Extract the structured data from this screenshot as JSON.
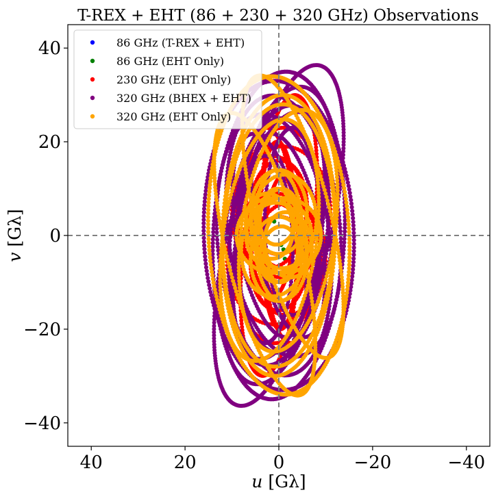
{
  "chart_data": {
    "type": "scatter",
    "title": "T-REX + EHT (86 + 230 + 320 GHz) Observations",
    "xlabel": "u [Gλ]",
    "ylabel": "v [Gλ]",
    "xlabel_var": "u",
    "ylabel_var": "v",
    "axis_unit": "[Gλ]",
    "xlim": [
      45,
      -45
    ],
    "ylim": [
      -45,
      45
    ],
    "xticks": [
      40,
      20,
      0,
      -20,
      -40
    ],
    "yticks": [
      -40,
      -20,
      0,
      20,
      40
    ],
    "xtick_labels": [
      "40",
      "20",
      "0",
      "−20",
      "−40"
    ],
    "ytick_labels": [
      "−40",
      "−20",
      "0",
      "20",
      "40"
    ],
    "reference_lines": {
      "x": 0,
      "y": 0,
      "style": "dashed",
      "color": "#808080"
    },
    "legend_position": "top-left",
    "series": [
      {
        "name": "86 GHz (T-REX + EHT)",
        "color": "#0000ff",
        "ellipses": [],
        "points": []
      },
      {
        "name": "86 GHz (EHT Only)",
        "color": "#008000",
        "ellipses": [],
        "points": [
          [
            -1,
            -3
          ],
          [
            -1.3,
            -5
          ],
          [
            -0.5,
            -2
          ],
          [
            -3,
            2
          ],
          [
            1,
            3
          ]
        ]
      },
      {
        "name": "230 GHz (EHT Only)",
        "color": "#ff0000",
        "ellipses": [
          [
            -2,
            8,
            22,
            6,
            4
          ],
          [
            -1,
            5,
            14,
            10,
            1
          ],
          [
            0,
            0,
            20,
            4,
            -1
          ],
          [
            -2,
            -5,
            12,
            8,
            3
          ],
          [
            2,
            5,
            18,
            5,
            -2
          ],
          [
            -1,
            8,
            15,
            8,
            0
          ],
          [
            0,
            6,
            10,
            6,
            2
          ]
        ],
        "points": []
      },
      {
        "name": "320 GHz (BHEX + EHT)",
        "color": "#800080",
        "ellipses": [
          [
            0,
            0,
            35,
            14,
            3
          ],
          [
            0,
            0,
            33,
            16,
            -2
          ],
          [
            -1,
            2,
            30,
            11,
            8
          ],
          [
            1,
            -2,
            28,
            12,
            -6
          ],
          [
            0,
            0,
            25,
            9,
            1
          ],
          [
            -3,
            3,
            20,
            6,
            0
          ],
          [
            2,
            -5,
            32,
            10,
            12
          ],
          [
            -2,
            0,
            22,
            7,
            -10
          ]
        ],
        "points": []
      },
      {
        "name": "320 GHz (EHT Only)",
        "color": "#ffa500",
        "ellipses": [
          [
            0,
            0,
            34,
            15,
            -3
          ],
          [
            0,
            -1,
            29,
            12,
            2
          ],
          [
            -2,
            1,
            26,
            10,
            8
          ],
          [
            3,
            -4,
            31,
            8,
            -14
          ],
          [
            0,
            5,
            9,
            6,
            0
          ],
          [
            -1,
            3,
            10,
            7,
            4
          ],
          [
            0,
            2,
            12,
            5,
            -2
          ],
          [
            1,
            0,
            8,
            8,
            0
          ],
          [
            0,
            4,
            6,
            4,
            10
          ],
          [
            -2,
            -2,
            7,
            5,
            -8
          ]
        ],
        "points": []
      }
    ]
  }
}
